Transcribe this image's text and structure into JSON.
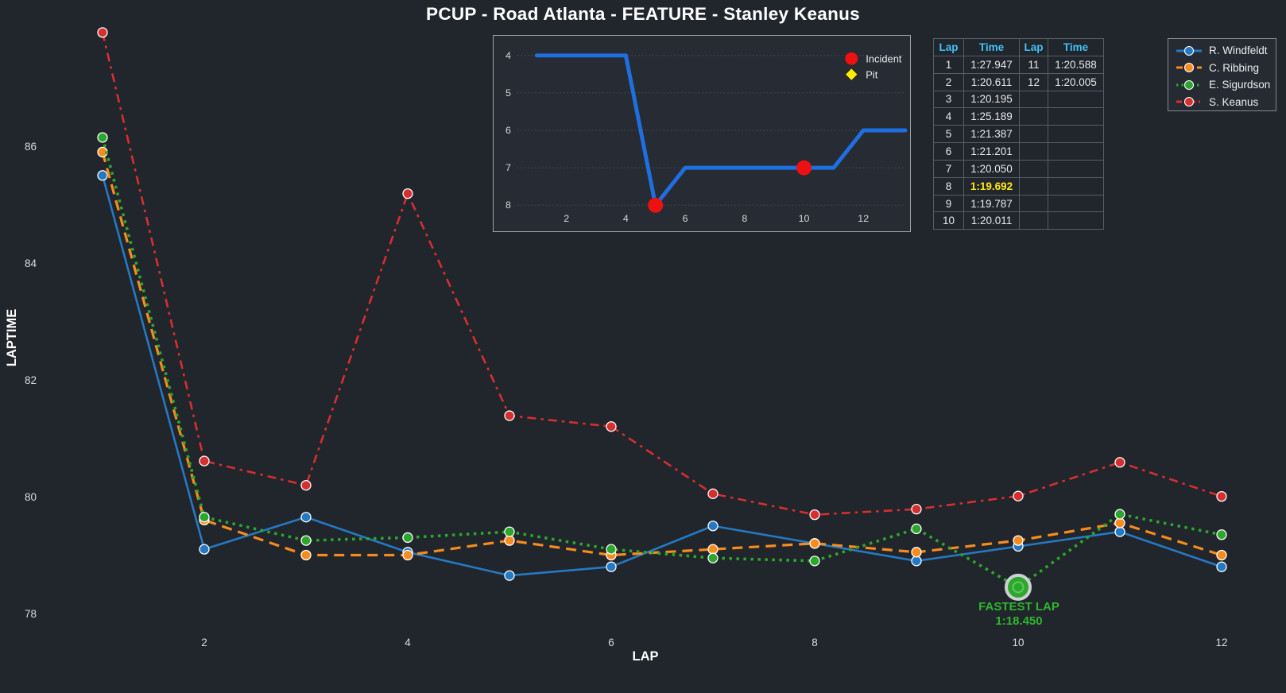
{
  "title": "PCUP - Road Atlanta - FEATURE - Stanley Keanus",
  "colors": {
    "background": "#21252c",
    "panel": "#262b33",
    "text": "#ffffff",
    "tick_text": "#dcdcdc",
    "table_border": "#575d66",
    "table_header_cyan": "#3fc3f7",
    "highlight_yellow": "#ffe81a",
    "fastest_green": "#2fb52f",
    "inset_line_blue": "#1f6fe0",
    "incident_red": "#ee1111",
    "pit_yellow": "#ffee00",
    "grid": "#4b5059",
    "border": "#9fa3a8"
  },
  "chart_data": [
    {
      "type": "line",
      "name": "laptime-chart",
      "title": "PCUP - Road Atlanta - FEATURE - Stanley Keanus",
      "xlabel": "LAP",
      "ylabel": "LAPTIME",
      "x": [
        1,
        2,
        3,
        4,
        5,
        6,
        7,
        8,
        9,
        10,
        11,
        12
      ],
      "xticks": [
        2,
        4,
        6,
        8,
        10,
        12
      ],
      "yticks": [
        78,
        80,
        82,
        84,
        86
      ],
      "ylim": [
        77.6,
        88.4
      ],
      "grid": false,
      "series": [
        {
          "name": "R. Windfeldt",
          "color": "#2579c2",
          "dash": "solid",
          "values": [
            85.5,
            79.1,
            79.65,
            79.05,
            78.65,
            78.8,
            79.5,
            79.2,
            78.9,
            79.15,
            79.4,
            78.8
          ]
        },
        {
          "name": "C. Ribbing",
          "color": "#f78c1e",
          "dash": "dashed",
          "values": [
            85.9,
            79.6,
            79.0,
            79.0,
            79.25,
            79.0,
            79.1,
            79.2,
            79.05,
            79.25,
            79.55,
            79.0
          ]
        },
        {
          "name": "E. Sigurdson",
          "color": "#2ca62c",
          "dash": "dotted",
          "values": [
            86.15,
            79.65,
            79.25,
            79.3,
            79.4,
            79.1,
            78.95,
            78.9,
            79.45,
            78.45,
            79.7,
            79.35
          ]
        },
        {
          "name": "S. Keanus",
          "color": "#d62f2f",
          "dash": "dashdot",
          "values": [
            87.947,
            80.611,
            80.195,
            85.189,
            81.387,
            81.201,
            80.05,
            79.692,
            79.787,
            80.011,
            80.588,
            80.005
          ]
        }
      ],
      "legend_position": "top-right",
      "annotation": {
        "label": "FASTEST LAP",
        "value": "1:18.450",
        "lap": 10,
        "series": "E. Sigurdson",
        "laptime": 78.45
      }
    },
    {
      "type": "line",
      "name": "position-by-lap-inset",
      "y_axis_inverted": true,
      "x": [
        1,
        2,
        3,
        4,
        5,
        6,
        7,
        8,
        9,
        10,
        11,
        12,
        13
      ],
      "positions": [
        4,
        4,
        4,
        4,
        8,
        7,
        7,
        7,
        7,
        7,
        7,
        6,
        6
      ],
      "yticks": [
        4,
        5,
        6,
        7,
        8
      ],
      "xticks": [
        2,
        4,
        6,
        8,
        10,
        12
      ],
      "grid": true,
      "line_color": "#1f6fe0",
      "incidents": [
        {
          "lap": 5,
          "position": 8
        },
        {
          "lap": 10,
          "position": 7
        }
      ],
      "pits": [],
      "legend": [
        {
          "label": "Incident",
          "marker": "circle",
          "color": "#ee1111"
        },
        {
          "label": "Pit",
          "marker": "diamond",
          "color": "#ffee00"
        }
      ]
    }
  ],
  "lap_table": {
    "headers": [
      "Lap",
      "Time",
      "Lap",
      "Time"
    ],
    "rows": [
      [
        "1",
        "1:27.947",
        "11",
        "1:20.588"
      ],
      [
        "2",
        "1:20.611",
        "12",
        "1:20.005"
      ],
      [
        "3",
        "1:20.195",
        "",
        ""
      ],
      [
        "4",
        "1:25.189",
        "",
        ""
      ],
      [
        "5",
        "1:21.387",
        "",
        ""
      ],
      [
        "6",
        "1:21.201",
        "",
        ""
      ],
      [
        "7",
        "1:20.050",
        "",
        ""
      ],
      [
        "8",
        "1:19.692",
        "",
        ""
      ],
      [
        "9",
        "1:19.787",
        "",
        ""
      ],
      [
        "10",
        "1:20.011",
        "",
        ""
      ]
    ],
    "fastest_time": "1:19.692"
  }
}
